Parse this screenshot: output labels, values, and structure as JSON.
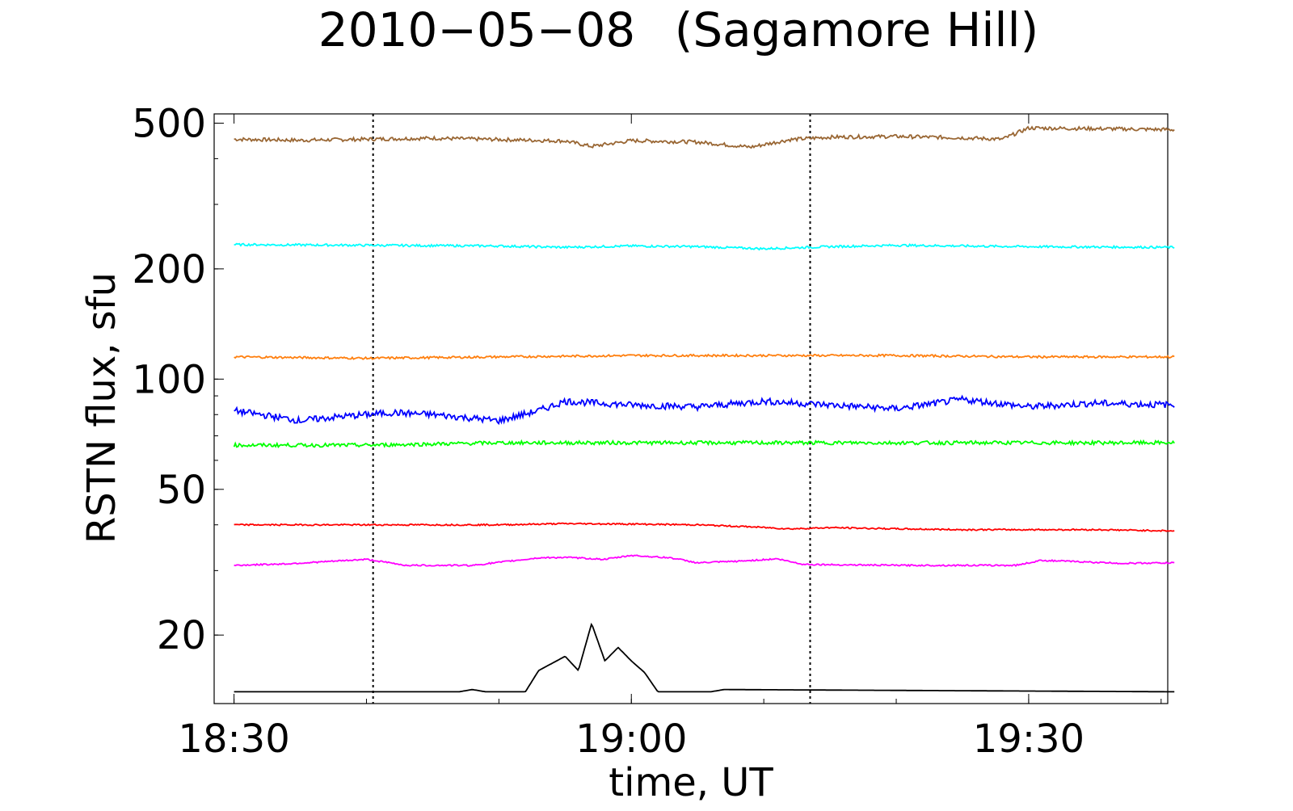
{
  "chart_data": {
    "type": "line",
    "title": "2010−05−08",
    "subtitle": "(Sagamore Hill)",
    "xlabel": "time, UT",
    "ylabel": "RSTN flux, sfu",
    "y_scale": "log",
    "ylim": [
      13,
      530
    ],
    "xlim": [
      "18:28:30",
      "19:40:30"
    ],
    "x_ticks": [
      "18:30",
      "19:00",
      "19:30"
    ],
    "y_ticks": [
      20,
      50,
      100,
      200,
      500
    ],
    "vlines": [
      "18:40:30",
      "19:13:30"
    ],
    "vline_style": "dotted",
    "grid": false,
    "legend": "none",
    "x_start": "18:30:00",
    "x_end": "19:41:00",
    "series": [
      {
        "color": "#996633",
        "x": [
          "18:30",
          "18:35",
          "18:40",
          "18:45",
          "18:50",
          "18:55",
          "18:57",
          "19:00",
          "19:05",
          "19:09",
          "19:12",
          "19:15",
          "19:20",
          "19:25",
          "19:28",
          "19:30",
          "19:35",
          "19:41"
        ],
        "values": [
          452,
          449,
          452,
          455,
          451,
          447,
          432,
          448,
          444,
          430,
          451,
          458,
          460,
          456,
          452,
          485,
          483,
          480
        ]
      },
      {
        "color": "#00ffff",
        "x": [
          "18:30",
          "18:40",
          "18:50",
          "18:55",
          "19:00",
          "19:05",
          "19:10",
          "19:15",
          "19:20",
          "19:30",
          "19:41"
        ],
        "values": [
          233,
          232,
          231,
          229,
          231,
          230,
          227,
          230,
          232,
          230,
          229
        ]
      },
      {
        "color": "#ff7f0e",
        "x": [
          "18:30",
          "18:40",
          "18:50",
          "19:00",
          "19:10",
          "19:20",
          "19:30",
          "19:41"
        ],
        "values": [
          115,
          114,
          115,
          116,
          116,
          116,
          115,
          115
        ]
      },
      {
        "color": "#0000ff",
        "x": [
          "18:30",
          "18:32",
          "18:35",
          "18:38",
          "18:42",
          "18:45",
          "18:50",
          "18:53",
          "18:55",
          "19:00",
          "19:05",
          "19:10",
          "19:15",
          "19:20",
          "19:25",
          "19:30",
          "19:35",
          "19:41"
        ],
        "values": [
          82,
          80,
          77,
          79,
          81,
          80,
          77,
          82,
          87,
          85,
          84,
          87,
          85,
          83,
          88,
          84,
          86,
          85
        ]
      },
      {
        "color": "#00ff00",
        "x": [
          "18:30",
          "18:40",
          "18:50",
          "19:00",
          "19:10",
          "19:20",
          "19:30",
          "19:41"
        ],
        "values": [
          66,
          66,
          67,
          67,
          67,
          67,
          67,
          67
        ]
      },
      {
        "color": "#ff0000",
        "x": [
          "18:30",
          "18:50",
          "18:55",
          "19:00",
          "19:05",
          "19:09",
          "19:12",
          "19:15",
          "19:20",
          "19:25",
          "19:30",
          "19:35",
          "19:41"
        ],
        "values": [
          40,
          40,
          40.3,
          40.2,
          40,
          39.5,
          39,
          39.3,
          39,
          38.8,
          38.8,
          38.8,
          38.5
        ]
      },
      {
        "color": "#ff00ff",
        "x": [
          "18:30",
          "18:34",
          "18:40",
          "18:43",
          "18:48",
          "18:53",
          "18:55",
          "18:58",
          "19:00",
          "19:03",
          "19:05",
          "19:08",
          "19:11",
          "19:13",
          "19:16",
          "19:21",
          "19:29",
          "19:31",
          "19:35",
          "19:37",
          "19:41"
        ],
        "values": [
          31,
          31.3,
          32.2,
          31,
          31,
          32.5,
          32.6,
          32.2,
          33,
          32.5,
          31.5,
          31.8,
          32.3,
          31.2,
          31.1,
          31,
          31,
          32,
          31.6,
          31.4,
          31.5
        ]
      },
      {
        "color": "#000000",
        "x": [
          "18:30",
          "18:47",
          "18:48",
          "18:49",
          "18:52",
          "18:53",
          "18:55",
          "18:56",
          "18:57",
          "18:58",
          "18:59",
          "19:00",
          "19:01",
          "19:02",
          "19:03",
          "19:06",
          "19:07",
          "19:41"
        ],
        "values": [
          14,
          14,
          14.2,
          14,
          14,
          16,
          17.5,
          16,
          21.5,
          17,
          18.5,
          17,
          15.8,
          14,
          14,
          14,
          14.2,
          14
        ]
      }
    ]
  }
}
